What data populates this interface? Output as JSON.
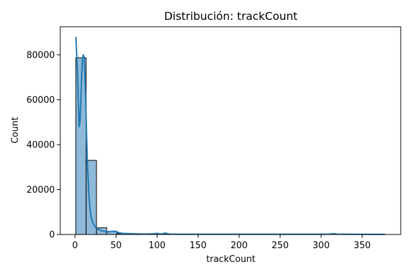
{
  "chart_data": {
    "type": "bar",
    "title": "Distribución: trackCount",
    "xlabel": "trackCount",
    "ylabel": "Count",
    "xlim": [
      -18,
      397
    ],
    "ylim": [
      0,
      92500
    ],
    "xticks": [
      0,
      50,
      100,
      150,
      200,
      250,
      300,
      350
    ],
    "yticks": [
      0,
      20000,
      40000,
      60000,
      80000
    ],
    "grid": false,
    "legend": "none",
    "bin_width": 12.55,
    "bins": [
      {
        "x0": 1.0,
        "count": 78700
      },
      {
        "x0": 13.55,
        "count": 33000
      },
      {
        "x0": 26.1,
        "count": 3000
      },
      {
        "x0": 38.65,
        "count": 1400
      },
      {
        "x0": 51.2,
        "count": 400
      },
      {
        "x0": 63.75,
        "count": 200
      },
      {
        "x0": 76.3,
        "count": 120
      },
      {
        "x0": 88.85,
        "count": 80
      },
      {
        "x0": 101.4,
        "count": 150
      },
      {
        "x0": 113.95,
        "count": 60
      },
      {
        "x0": 126.5,
        "count": 40
      },
      {
        "x0": 139.05,
        "count": 30
      },
      {
        "x0": 151.6,
        "count": 25
      },
      {
        "x0": 164.15,
        "count": 20
      },
      {
        "x0": 176.7,
        "count": 15
      },
      {
        "x0": 189.25,
        "count": 15
      },
      {
        "x0": 201.8,
        "count": 20
      },
      {
        "x0": 214.35,
        "count": 10
      },
      {
        "x0": 226.9,
        "count": 10
      },
      {
        "x0": 239.45,
        "count": 8
      },
      {
        "x0": 252.0,
        "count": 8
      },
      {
        "x0": 264.55,
        "count": 6
      },
      {
        "x0": 277.1,
        "count": 6
      },
      {
        "x0": 289.65,
        "count": 5
      },
      {
        "x0": 302.2,
        "count": 5
      },
      {
        "x0": 314.75,
        "count": 30
      },
      {
        "x0": 327.3,
        "count": 4
      },
      {
        "x0": 339.85,
        "count": 3
      },
      {
        "x0": 352.4,
        "count": 3
      },
      {
        "x0": 364.95,
        "count": 3
      }
    ],
    "kde": {
      "x": [
        1,
        3,
        5,
        6,
        7,
        8,
        9,
        10,
        11,
        12,
        13,
        14,
        15,
        16,
        17,
        18,
        19,
        20,
        22,
        24,
        26,
        28,
        30,
        33,
        36,
        40,
        45,
        48,
        52,
        58,
        65,
        75,
        85,
        95,
        100,
        105,
        110,
        115,
        125,
        150,
        200,
        250,
        300,
        310,
        315,
        320,
        330,
        350,
        378
      ],
      "y": [
        88000,
        72000,
        48000,
        50000,
        58000,
        70000,
        78000,
        80000,
        79000,
        72000,
        60000,
        45000,
        33000,
        24000,
        17000,
        12500,
        9000,
        7000,
        5000,
        3500,
        2800,
        2400,
        2000,
        1600,
        1400,
        1200,
        1400,
        1500,
        900,
        500,
        400,
        300,
        200,
        300,
        500,
        200,
        600,
        200,
        100,
        100,
        100,
        100,
        100,
        150,
        400,
        150,
        100,
        80,
        50
      ]
    },
    "colors": {
      "bar_fill": "#8fb9d8",
      "bar_edge": "#000000",
      "kde_line": "#1f77b4",
      "axis": "#000000"
    }
  }
}
